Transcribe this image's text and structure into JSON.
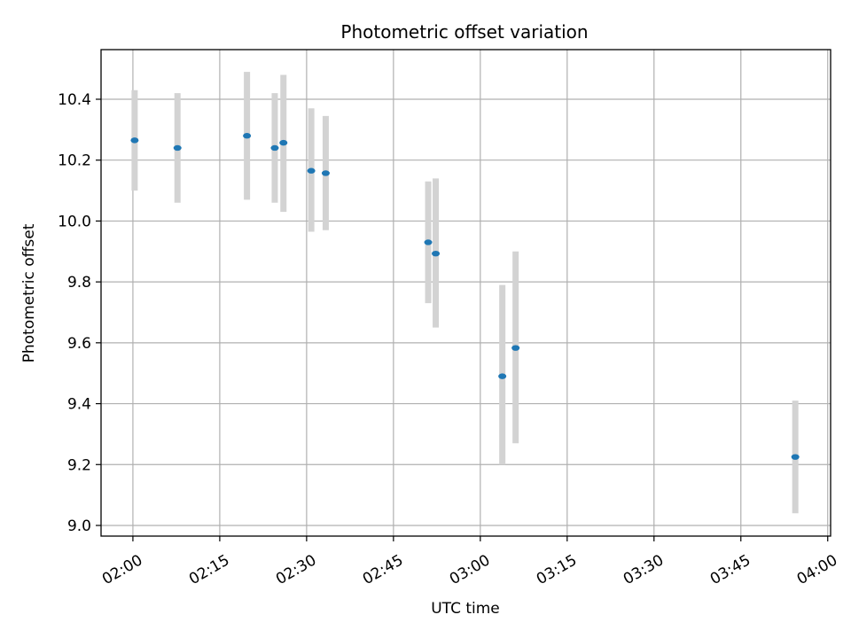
{
  "chart_data": {
    "type": "scatter",
    "title": "Photometric offset variation",
    "xlabel": "UTC time",
    "ylabel": "Photometric offset",
    "xlim_minutes": [
      114.5,
      240.5
    ],
    "ylim": [
      8.965,
      10.563
    ],
    "x_ticks": [
      {
        "minutes": 120,
        "label": "02:00"
      },
      {
        "minutes": 135,
        "label": "02:15"
      },
      {
        "minutes": 150,
        "label": "02:30"
      },
      {
        "minutes": 165,
        "label": "02:45"
      },
      {
        "minutes": 180,
        "label": "03:00"
      },
      {
        "minutes": 195,
        "label": "03:15"
      },
      {
        "minutes": 210,
        "label": "03:30"
      },
      {
        "minutes": 225,
        "label": "03:45"
      },
      {
        "minutes": 240,
        "label": "04:00"
      }
    ],
    "y_ticks": [
      {
        "value": 9.0,
        "label": "9.0"
      },
      {
        "value": 9.2,
        "label": "9.2"
      },
      {
        "value": 9.4,
        "label": "9.4"
      },
      {
        "value": 9.6,
        "label": "9.6"
      },
      {
        "value": 9.8,
        "label": "9.8"
      },
      {
        "value": 10.0,
        "label": "10.0"
      },
      {
        "value": 10.2,
        "label": "10.2"
      },
      {
        "value": 10.4,
        "label": "10.4"
      }
    ],
    "grid": true,
    "series": [
      {
        "name": "offset",
        "color": "#1f77b4",
        "error_color": "#d3d3d3",
        "points": [
          {
            "minutes": 120.3,
            "y": 10.265,
            "ylo": 10.1,
            "yhi": 10.43
          },
          {
            "minutes": 127.7,
            "y": 10.24,
            "ylo": 10.06,
            "yhi": 10.42
          },
          {
            "minutes": 139.7,
            "y": 10.28,
            "ylo": 10.07,
            "yhi": 10.49
          },
          {
            "minutes": 144.5,
            "y": 10.24,
            "ylo": 10.06,
            "yhi": 10.42
          },
          {
            "minutes": 146.0,
            "y": 10.257,
            "ylo": 10.03,
            "yhi": 10.48
          },
          {
            "minutes": 150.8,
            "y": 10.165,
            "ylo": 9.965,
            "yhi": 10.37
          },
          {
            "minutes": 153.3,
            "y": 10.157,
            "ylo": 9.97,
            "yhi": 10.345
          },
          {
            "minutes": 171.0,
            "y": 9.93,
            "ylo": 9.73,
            "yhi": 10.13
          },
          {
            "minutes": 172.3,
            "y": 9.893,
            "ylo": 9.65,
            "yhi": 10.14
          },
          {
            "minutes": 183.8,
            "y": 9.49,
            "ylo": 9.2,
            "yhi": 9.79
          },
          {
            "minutes": 186.1,
            "y": 9.583,
            "ylo": 9.27,
            "yhi": 9.9
          },
          {
            "minutes": 234.4,
            "y": 9.225,
            "ylo": 9.04,
            "yhi": 9.41
          }
        ]
      }
    ]
  }
}
